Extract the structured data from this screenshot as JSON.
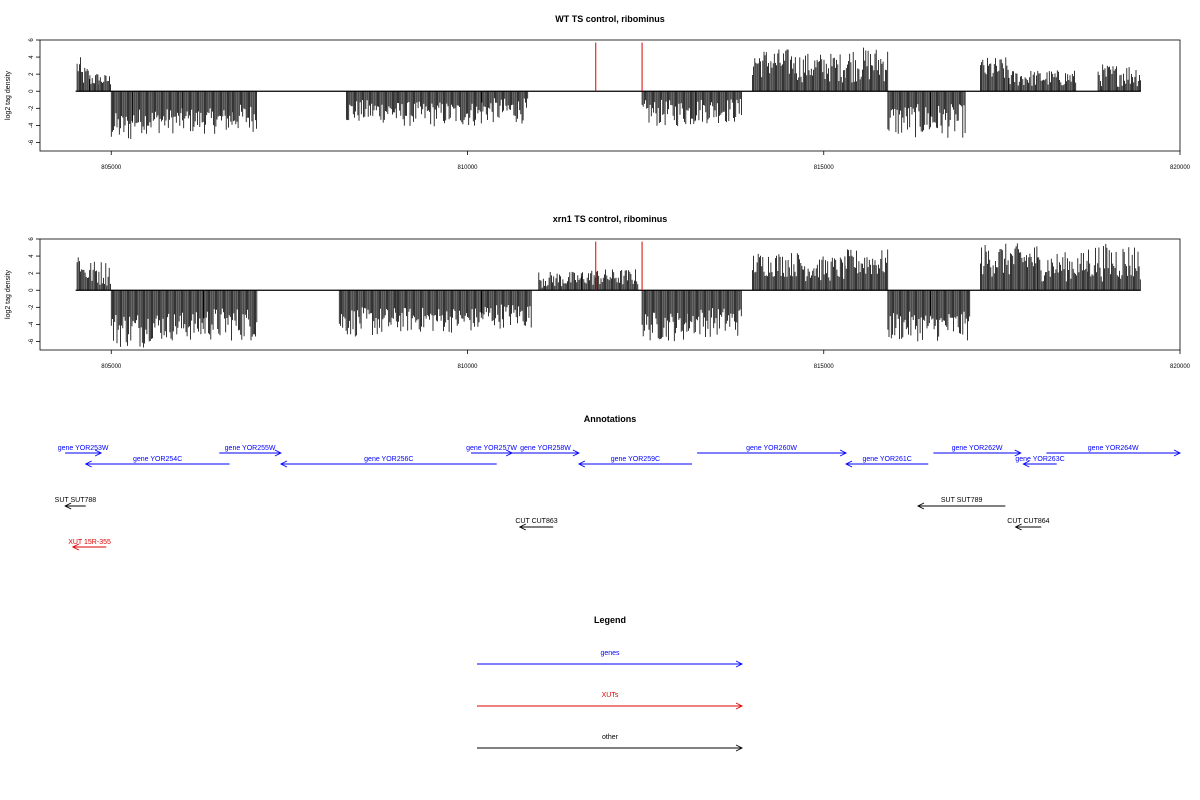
{
  "chart_data": [
    {
      "type": "bar",
      "title": "WT TS control, ribominus",
      "xlabel": "",
      "ylabel": "log2 tag density",
      "xlim": [
        804000,
        820000
      ],
      "ylim": [
        -7,
        6
      ],
      "x_ticks": [
        805000,
        810000,
        815000,
        820000
      ],
      "x_tick_labels": [
        "805000",
        "810000",
        "815000",
        "820000"
      ],
      "y_ticks": [
        -6,
        -4,
        -2,
        0,
        2,
        4,
        6
      ],
      "y_tick_labels": [
        "-6",
        "-4",
        "-2",
        "0",
        "2",
        "4",
        "6"
      ],
      "baseline": [
        804500,
        819450
      ],
      "highlight_color": "#dd0000",
      "highlights": [
        {
          "x": 811800,
          "y": 5.7
        },
        {
          "x": 812450,
          "y": 5.7
        }
      ],
      "segments": [
        {
          "x0": 804520,
          "x1": 804580,
          "min": 1.5,
          "max": 4.0
        },
        {
          "x0": 804580,
          "x1": 804700,
          "min": 0.5,
          "max": 3.0
        },
        {
          "x0": 804700,
          "x1": 804830,
          "min": 0.5,
          "max": 2.2
        },
        {
          "x0": 804830,
          "x1": 805000,
          "min": 0.5,
          "max": 2.0
        },
        {
          "x0": 805000,
          "x1": 805300,
          "min": -6.0,
          "max": -2.5
        },
        {
          "x0": 805300,
          "x1": 806000,
          "min": -5.0,
          "max": -2.0
        },
        {
          "x0": 806000,
          "x1": 806700,
          "min": -5.0,
          "max": -2.0
        },
        {
          "x0": 806700,
          "x1": 807050,
          "min": -4.8,
          "max": -1.5
        },
        {
          "x0": 808300,
          "x1": 809000,
          "min": -3.8,
          "max": -1.0
        },
        {
          "x0": 809000,
          "x1": 810200,
          "min": -4.2,
          "max": -1.2
        },
        {
          "x0": 810200,
          "x1": 810850,
          "min": -3.8,
          "max": -0.8
        },
        {
          "x0": 812450,
          "x1": 813200,
          "min": -4.2,
          "max": -1.0
        },
        {
          "x0": 813200,
          "x1": 813850,
          "min": -3.8,
          "max": -0.8
        },
        {
          "x0": 814000,
          "x1": 814600,
          "min": 1.5,
          "max": 5.0
        },
        {
          "x0": 814600,
          "x1": 815300,
          "min": 1.0,
          "max": 4.5
        },
        {
          "x0": 815300,
          "x1": 815900,
          "min": 1.0,
          "max": 5.2
        },
        {
          "x0": 815900,
          "x1": 816500,
          "min": -5.5,
          "max": -1.5
        },
        {
          "x0": 816500,
          "x1": 817000,
          "min": -5.5,
          "max": -1.5
        },
        {
          "x0": 817200,
          "x1": 817600,
          "min": 1.0,
          "max": 4.0
        },
        {
          "x0": 817600,
          "x1": 818550,
          "min": 0.5,
          "max": 2.5
        },
        {
          "x0": 818850,
          "x1": 819450,
          "min": 0.5,
          "max": 3.2
        }
      ]
    },
    {
      "type": "bar",
      "title": "xrn1 TS control, ribominus",
      "xlabel": "",
      "ylabel": "log2 tag density",
      "xlim": [
        804000,
        820000
      ],
      "ylim": [
        -7,
        6
      ],
      "x_ticks": [
        805000,
        810000,
        815000,
        820000
      ],
      "x_tick_labels": [
        "805000",
        "810000",
        "815000",
        "820000"
      ],
      "y_ticks": [
        -6,
        -4,
        -2,
        0,
        2,
        4,
        6
      ],
      "y_tick_labels": [
        "-6",
        "-4",
        "-2",
        "0",
        "2",
        "4",
        "6"
      ],
      "baseline": [
        804500,
        819450
      ],
      "highlight_color": "#dd0000",
      "highlights": [
        {
          "x": 811800,
          "y": 5.7
        },
        {
          "x": 812450,
          "y": 5.7
        }
      ],
      "segments": [
        {
          "x0": 804520,
          "x1": 804600,
          "min": 1.5,
          "max": 4.8
        },
        {
          "x0": 804600,
          "x1": 805000,
          "min": 0.5,
          "max": 3.5
        },
        {
          "x0": 805000,
          "x1": 805500,
          "min": -6.8,
          "max": -2.5
        },
        {
          "x0": 805500,
          "x1": 806300,
          "min": -6.0,
          "max": -2.5
        },
        {
          "x0": 806300,
          "x1": 807050,
          "min": -6.0,
          "max": -2.0
        },
        {
          "x0": 808200,
          "x1": 809000,
          "min": -5.5,
          "max": -2.0
        },
        {
          "x0": 809000,
          "x1": 810200,
          "min": -5.0,
          "max": -2.0
        },
        {
          "x0": 810200,
          "x1": 810900,
          "min": -4.5,
          "max": -1.5
        },
        {
          "x0": 811000,
          "x1": 811600,
          "min": 0.3,
          "max": 2.2
        },
        {
          "x0": 811600,
          "x1": 812400,
          "min": 0.5,
          "max": 2.5
        },
        {
          "x0": 812450,
          "x1": 813100,
          "min": -6.0,
          "max": -2.5
        },
        {
          "x0": 813100,
          "x1": 813850,
          "min": -5.5,
          "max": -2.0
        },
        {
          "x0": 814000,
          "x1": 814700,
          "min": 1.5,
          "max": 4.5
        },
        {
          "x0": 814700,
          "x1": 815300,
          "min": 1.0,
          "max": 4.0
        },
        {
          "x0": 815300,
          "x1": 815900,
          "min": 1.5,
          "max": 4.8
        },
        {
          "x0": 815900,
          "x1": 816500,
          "min": -6.0,
          "max": -2.5
        },
        {
          "x0": 816500,
          "x1": 817050,
          "min": -6.0,
          "max": -2.5
        },
        {
          "x0": 817200,
          "x1": 818000,
          "min": 1.5,
          "max": 5.5
        },
        {
          "x0": 818000,
          "x1": 818700,
          "min": 1.0,
          "max": 4.5
        },
        {
          "x0": 818700,
          "x1": 819450,
          "min": 1.0,
          "max": 5.5
        }
      ]
    }
  ],
  "annotations": {
    "title": "Annotations",
    "xlim": [
      804000,
      820000
    ],
    "colors": {
      "gene": "#0000ff",
      "xut": "#dd0000",
      "other": "#000000"
    },
    "features": [
      {
        "label": "gene YOR253W",
        "kind": "gene",
        "start": 804600,
        "end": 805300,
        "strand": "+",
        "row": 0
      },
      {
        "label": "gene YOR254C",
        "kind": "gene",
        "start": 805000,
        "end": 807800,
        "strand": "-",
        "row": 1
      },
      {
        "label": "gene YOR255W",
        "kind": "gene",
        "start": 807600,
        "end": 808800,
        "strand": "+",
        "row": 0
      },
      {
        "label": "gene YOR256C",
        "kind": "gene",
        "start": 808800,
        "end": 813000,
        "strand": "-",
        "row": 1
      },
      {
        "label": "gene YOR257W",
        "kind": "gene",
        "start": 812500,
        "end": 813300,
        "strand": "+",
        "row": 0
      },
      {
        "label": "gene YOR258W",
        "kind": "gene",
        "start": 813300,
        "end": 814600,
        "strand": "+",
        "row": 0
      },
      {
        "label": "gene YOR259C",
        "kind": "gene",
        "start": 814600,
        "end": 816800,
        "strand": "-",
        "row": 1
      },
      {
        "label": "gene YOR260W",
        "kind": "gene",
        "start": 816900,
        "end": 819800,
        "strand": "+",
        "row": 0
      },
      {
        "label": "gene YOR261C",
        "kind": "gene",
        "start": 819800,
        "end": 821400,
        "strand": "-",
        "row": 1
      },
      {
        "label": "gene YOR262W",
        "kind": "gene",
        "start": 821500,
        "end": 823200,
        "strand": "+",
        "row": 0
      },
      {
        "label": "gene YOR263C",
        "kind": "gene",
        "start": 823250,
        "end": 823900,
        "strand": "-",
        "row": 1
      },
      {
        "label": "gene YOR264W",
        "kind": "gene",
        "start": 823700,
        "end": 826300,
        "strand": "+",
        "row": 0
      },
      {
        "label": "SUT SUT788",
        "kind": "other",
        "start": 804600,
        "end": 805000,
        "strand": "-",
        "row": 2
      },
      {
        "label": "CUT CUT863",
        "kind": "other",
        "start": 813450,
        "end": 814100,
        "strand": "-",
        "row": 3
      },
      {
        "label": "SUT SUT789",
        "kind": "other",
        "start": 821200,
        "end": 822900,
        "strand": "-",
        "row": 2
      },
      {
        "label": "CUT CUT864",
        "kind": "other",
        "start": 823100,
        "end": 823600,
        "strand": "-",
        "row": 3
      },
      {
        "label": "XUT 15R-355",
        "kind": "xut",
        "start": 804750,
        "end": 805400,
        "strand": "-",
        "row": 4
      }
    ]
  },
  "legend": {
    "title": "Legend",
    "items": [
      {
        "label": "genes",
        "color": "#0000ff"
      },
      {
        "label": "XUTs",
        "color": "#dd0000"
      },
      {
        "label": "other",
        "color": "#000000"
      }
    ]
  }
}
